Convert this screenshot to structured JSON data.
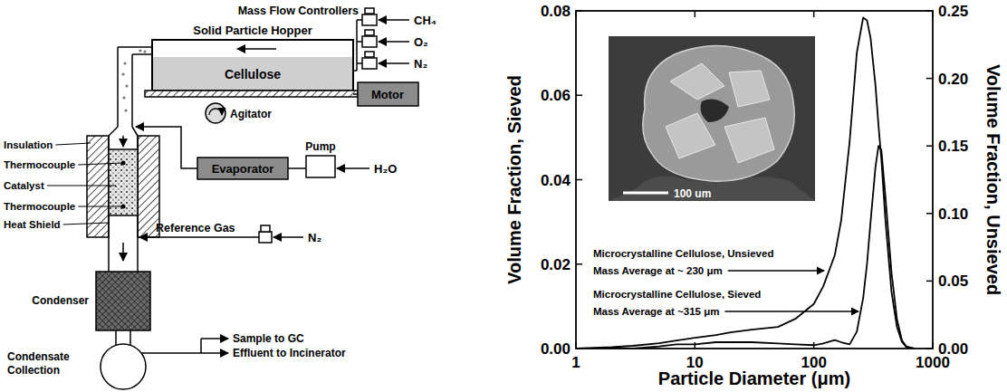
{
  "diagram": {
    "mass_flow_controllers": "Mass Flow Controllers",
    "gases": [
      "CH₄",
      "O₂",
      "N₂"
    ],
    "hopper": "Solid Particle Hopper",
    "hopper_content": "Cellulose",
    "motor": "Motor",
    "agitator": "Agitator",
    "evaporator": "Evaporator",
    "pump": "Pump",
    "water": "H₂O",
    "reactor_labels": [
      "Insulation",
      "Thermocouple",
      "Catalyst",
      "Thermocouple",
      "Heat Shield"
    ],
    "reference_gas": "Reference Gas",
    "reference_gas_species": "N₂",
    "condenser": "Condenser",
    "outlets": [
      "Sample to GC",
      "Effluent to Incinerator"
    ],
    "collection": "Condensate Collection"
  },
  "inset": {
    "scale_bar": "100 um"
  },
  "chart_data": {
    "type": "line",
    "log": "x",
    "xlabel": "Particle Diameter (μm)",
    "ylabel": "Volume Fraction, Sieved",
    "y2label": "Volume Fraction, Unsieved",
    "xlim": [
      1,
      1000
    ],
    "xticks": [
      1,
      10,
      100,
      1000
    ],
    "ylim": [
      0,
      0.08
    ],
    "yticks": [
      {
        "value": 0,
        "label": "0.00"
      },
      0.02,
      0.04,
      0.06,
      0.08
    ],
    "y2lim": [
      0,
      0.25
    ],
    "y2ticks": [
      {
        "value": 0,
        "label": "0.00"
      },
      0.05,
      {
        "value": 0.1,
        "label": "0.10"
      },
      0.15,
      {
        "value": 0.2,
        "label": "0.20"
      },
      0.25
    ],
    "x": [
      1,
      2,
      3,
      5,
      7,
      10,
      15,
      20,
      30,
      50,
      70,
      100,
      120,
      150,
      170,
      200,
      230,
      260,
      280,
      300,
      330,
      350,
      370,
      400,
      450,
      500,
      550,
      600,
      700
    ],
    "series": [
      {
        "name": "Microcrystalline Cellulose, Unsieved",
        "annotation": "Mass Average at ~ 230 μm",
        "color": "#000000",
        "axis": "y2",
        "values": [
          0,
          0.001,
          0.002,
          0.004,
          0.006,
          0.008,
          0.01,
          0.012,
          0.014,
          0.016,
          0.022,
          0.033,
          0.046,
          0.069,
          0.095,
          0.153,
          0.219,
          0.245,
          0.243,
          0.23,
          0.195,
          0.165,
          0.14,
          0.095,
          0.042,
          0.016,
          0.005,
          0.001,
          0
        ]
      },
      {
        "name": "Microcrystalline Cellulose, Sieved",
        "annotation": "Mass Average at ~315 μm",
        "color": "#000000",
        "values": [
          0,
          0,
          0,
          0.0005,
          0.001,
          0.001,
          0.0015,
          0.0015,
          0.0015,
          0.0012,
          0.001,
          0.0008,
          0.0012,
          0.002,
          0.0015,
          0.001,
          0.004,
          0.012,
          0.02,
          0.03,
          0.043,
          0.048,
          0.047,
          0.036,
          0.018,
          0.007,
          0.002,
          0.0005,
          0
        ]
      }
    ]
  }
}
